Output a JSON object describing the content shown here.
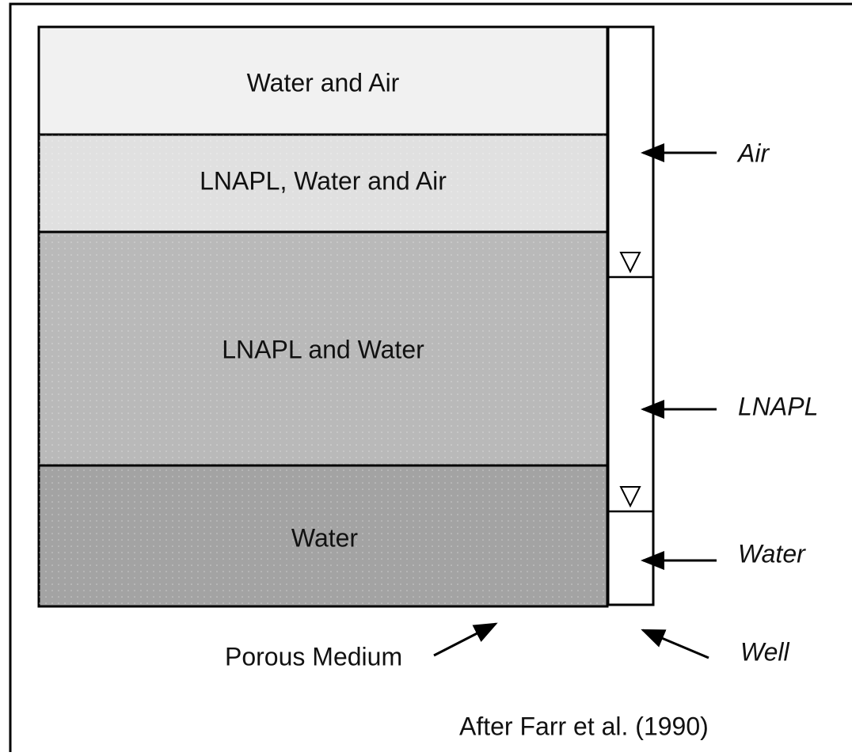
{
  "layers": [
    {
      "label": "Water and Air"
    },
    {
      "label": "LNAPL, Water and Air"
    },
    {
      "label": "LNAPL and Water"
    },
    {
      "label": "Water"
    }
  ],
  "well_labels": [
    "Air",
    "LNAPL",
    "Water"
  ],
  "pointers": {
    "porous_medium": "Porous Medium",
    "well": "Well"
  },
  "source": "After Farr et al. (1990)"
}
